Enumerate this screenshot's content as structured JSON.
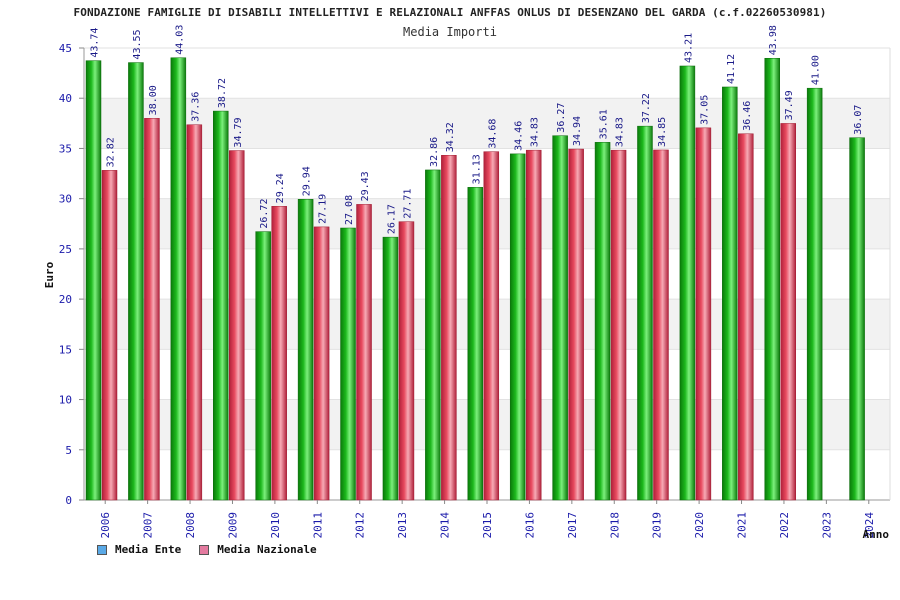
{
  "colors": {
    "series_ente": "#1db81d",
    "series_nazionale": "#e84a5f",
    "legend_ente": "#5aa9e6",
    "legend_nazionale": "#e47ba0",
    "axis_text": "#1a1aaa",
    "band": "#f2f2f2"
  },
  "chart_data": {
    "type": "bar",
    "title": "FONDAZIONE FAMIGLIE DI DISABILI INTELLETTIVI E RELAZIONALI ANFFAS ONLUS DI DESENZANO DEL GARDA (c.f.02260530981)",
    "subtitle": "Media Importi",
    "xlabel": "Anno",
    "ylabel": "Euro",
    "ylim": [
      0,
      45
    ],
    "yticks": [
      0,
      5,
      10,
      15,
      20,
      25,
      30,
      35,
      40,
      45
    ],
    "grid": true,
    "legend_position": "bottom-left",
    "categories": [
      "2006",
      "2007",
      "2008",
      "2009",
      "2010",
      "2011",
      "2012",
      "2013",
      "2014",
      "2015",
      "2016",
      "2017",
      "2018",
      "2019",
      "2020",
      "2021",
      "2022",
      "2023",
      "2024"
    ],
    "series": [
      {
        "name": "Media Ente",
        "values": [
          43.74,
          43.55,
          44.03,
          38.72,
          26.72,
          29.94,
          27.08,
          26.17,
          32.86,
          31.13,
          34.46,
          36.27,
          35.61,
          37.22,
          43.21,
          41.12,
          43.98,
          41.0,
          36.07
        ],
        "labels": [
          "43.74",
          "43.55",
          "44.03",
          "38.72",
          "26.72",
          "29.94",
          "27.08",
          "26.17",
          "32.86",
          "31.13",
          "34.46",
          "36.27",
          "35.61",
          "37.22",
          "43.21",
          "41.12",
          "43.98",
          "41.00",
          "36.07"
        ]
      },
      {
        "name": "Media Nazionale",
        "values": [
          32.82,
          38.0,
          37.36,
          34.79,
          29.24,
          27.19,
          29.43,
          27.71,
          34.32,
          34.68,
          34.83,
          34.94,
          34.83,
          34.85,
          37.05,
          36.46,
          37.49,
          null,
          null
        ],
        "labels": [
          "32.82",
          "38.00",
          "37.36",
          "34.79",
          "29.24",
          "27.19",
          "29.43",
          "27.71",
          "34.32",
          "34.68",
          "34.83",
          "34.94",
          "34.83",
          "34.85",
          "37.05",
          "36.46",
          "37.49",
          null,
          null
        ]
      }
    ]
  }
}
